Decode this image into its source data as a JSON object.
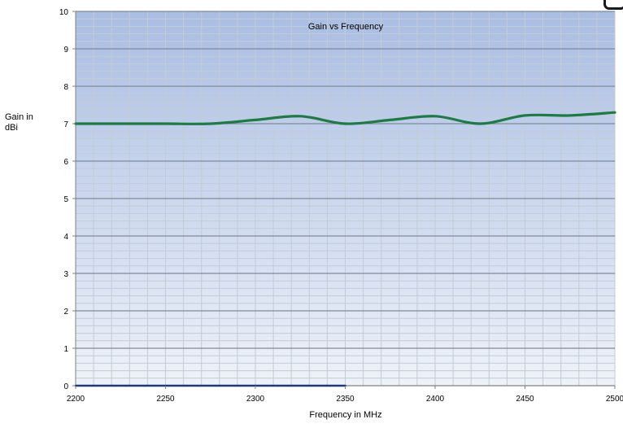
{
  "chart_data": {
    "type": "line",
    "title": "Gain vs Frequency",
    "xlabel": "Frequency in MHz",
    "ylabel_lines": [
      "Gain in",
      "dBi"
    ],
    "xlim": [
      2200,
      2500
    ],
    "ylim": [
      0,
      10
    ],
    "x_ticks": [
      "2200",
      "2250",
      "2300",
      "2350",
      "2400",
      "2450",
      "2500"
    ],
    "y_ticks": [
      "0",
      "1",
      "2",
      "3",
      "4",
      "5",
      "6",
      "7",
      "8",
      "9",
      "10"
    ],
    "grid": true,
    "legend": "none",
    "series": [
      {
        "color": "#1f7a46",
        "x": [
          2200,
          2225,
          2250,
          2275,
          2300,
          2325,
          2350,
          2375,
          2400,
          2425,
          2450,
          2475,
          2500
        ],
        "y": [
          7.0,
          7.0,
          7.0,
          7.0,
          7.1,
          7.2,
          7.0,
          7.1,
          7.2,
          7.0,
          7.22,
          7.22,
          7.3
        ]
      },
      {
        "color": "#1f3a7a",
        "x": [
          2200,
          2350
        ],
        "y": [
          0,
          0
        ]
      }
    ],
    "colors": {
      "plot_top": "#a9bde3",
      "plot_bottom": "#eef2f9",
      "major_grid": "#7f8a98",
      "minor_grid": "#c3cbd6"
    }
  }
}
